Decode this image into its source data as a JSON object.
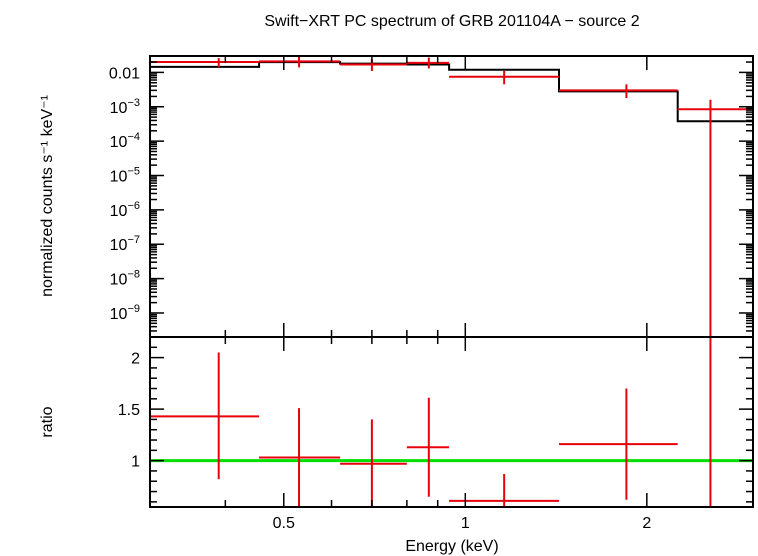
{
  "chart_data": [
    {
      "type": "scatter",
      "panel": "spectrum",
      "title": "Swift−XRT PC spectrum of GRB 201104A − source 2",
      "xlabel": "Energy (keV)",
      "ylabel": "normalized counts s⁻¹ keV⁻¹",
      "xscale": "log",
      "yscale": "log",
      "xlim": [
        0.3,
        3.0
      ],
      "ylim": [
        2e-10,
        0.03
      ],
      "ytick_values": [
        1e-09,
        1e-08,
        1e-07,
        1e-06,
        1e-05,
        0.0001,
        0.001,
        0.01
      ],
      "ytick_labels": [
        {
          "base": "10",
          "exp": "−9"
        },
        {
          "base": "10",
          "exp": "−8"
        },
        {
          "base": "10",
          "exp": "−7"
        },
        {
          "base": "10",
          "exp": "−6"
        },
        {
          "base": "10",
          "exp": "−5"
        },
        {
          "base": "10",
          "exp": "−4"
        },
        {
          "base": "10",
          "exp": "−3"
        },
        {
          "base": "0.01",
          "exp": ""
        }
      ],
      "series": [
        {
          "color": "#e8000b",
          "points": [
            {
              "xlo": 0.3,
              "xhi": 0.455,
              "x": 0.39,
              "y": 0.02,
              "ylo": 0.014,
              "yhi": 0.026
            },
            {
              "xlo": 0.455,
              "xhi": 0.62,
              "x": 0.53,
              "y": 0.021,
              "ylo": 0.014,
              "yhi": 0.031
            },
            {
              "xlo": 0.62,
              "xhi": 0.8,
              "x": 0.7,
              "y": 0.017,
              "ylo": 0.011,
              "yhi": 0.024
            },
            {
              "xlo": 0.8,
              "xhi": 0.94,
              "x": 0.87,
              "y": 0.019,
              "ylo": 0.013,
              "yhi": 0.027
            },
            {
              "xlo": 0.94,
              "xhi": 1.43,
              "x": 1.16,
              "y": 0.0075,
              "ylo": 0.0045,
              "yhi": 0.011
            },
            {
              "xlo": 1.43,
              "xhi": 2.25,
              "x": 1.85,
              "y": 0.003,
              "ylo": 0.0018,
              "yhi": 0.0045
            },
            {
              "xlo": 2.25,
              "xhi": 3.0,
              "x": 2.55,
              "y": 0.00085,
              "ylo": 2e-10,
              "yhi": 0.0016
            }
          ]
        },
        {
          "color": "#000000",
          "steps": [
            {
              "xlo": 0.3,
              "xhi": 0.455,
              "y": 0.0145
            },
            {
              "xlo": 0.455,
              "xhi": 0.62,
              "y": 0.02
            },
            {
              "xlo": 0.62,
              "xhi": 0.8,
              "y": 0.018
            },
            {
              "xlo": 0.8,
              "xhi": 0.94,
              "y": 0.017
            },
            {
              "xlo": 0.94,
              "xhi": 1.43,
              "y": 0.012
            },
            {
              "xlo": 1.43,
              "xhi": 2.25,
              "y": 0.0028
            },
            {
              "xlo": 2.25,
              "xhi": 3.0,
              "y": 0.00038
            }
          ]
        }
      ]
    },
    {
      "type": "scatter",
      "panel": "ratio",
      "xlabel": "Energy (keV)",
      "ylabel": "ratio",
      "xscale": "log",
      "xlim": [
        0.3,
        3.0
      ],
      "ylim": [
        0.55,
        2.2
      ],
      "xtick_values": [
        0.5,
        1,
        2
      ],
      "xtick_labels": [
        "0.5",
        "1",
        "2"
      ],
      "ytick_values": [
        1,
        1.5,
        2
      ],
      "ytick_labels": [
        "1",
        "1.5",
        "2"
      ],
      "reference_line": {
        "y": 1,
        "color": "#00e000"
      },
      "series": [
        {
          "color": "#e8000b",
          "points": [
            {
              "xlo": 0.3,
              "xhi": 0.455,
              "x": 0.39,
              "y": 1.43,
              "ylo": 0.82,
              "yhi": 2.05
            },
            {
              "xlo": 0.455,
              "xhi": 0.62,
              "x": 0.53,
              "y": 1.03,
              "ylo": 0.56,
              "yhi": 1.51
            },
            {
              "xlo": 0.62,
              "xhi": 0.8,
              "x": 0.7,
              "y": 0.97,
              "ylo": 0.56,
              "yhi": 1.4
            },
            {
              "xlo": 0.8,
              "xhi": 0.94,
              "x": 0.87,
              "y": 1.13,
              "ylo": 0.65,
              "yhi": 1.61
            },
            {
              "xlo": 0.94,
              "xhi": 1.43,
              "x": 1.16,
              "y": 0.61,
              "ylo": 0.55,
              "yhi": 0.87
            },
            {
              "xlo": 1.43,
              "xhi": 2.25,
              "x": 1.85,
              "y": 1.16,
              "ylo": 0.62,
              "yhi": 1.7
            },
            {
              "xlo": 2.25,
              "xhi": 3.0,
              "x": 2.55,
              "y": 2.2,
              "ylo": 0.55,
              "yhi": 2.2
            }
          ]
        }
      ]
    }
  ]
}
